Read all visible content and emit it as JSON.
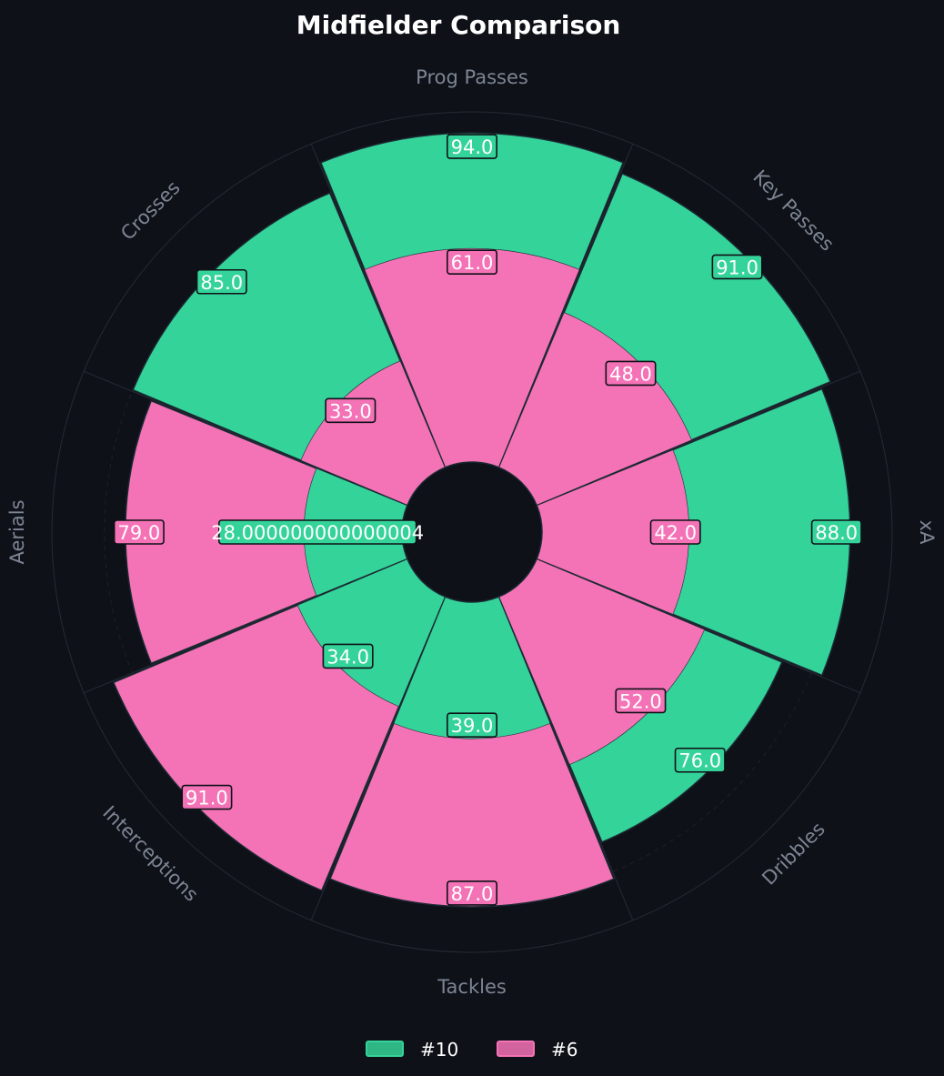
{
  "chart_data": {
    "type": "polar-bar",
    "title": "Midfielder Comparison",
    "categories": [
      "Prog Passes",
      "Key Passes",
      "xA",
      "Dribbles",
      "Tackles",
      "Interceptions",
      "Aerials",
      "Crosses"
    ],
    "series": [
      {
        "name": "#10",
        "color": "#34d399",
        "values": [
          94,
          91,
          88,
          76,
          39,
          34,
          28,
          85
        ],
        "labels": [
          "94.0",
          "91.0",
          "88.0",
          "76.0",
          "39.0",
          "34.0",
          "28.000000000000004",
          "85.0"
        ]
      },
      {
        "name": "#6",
        "color": "#f472b6",
        "values": [
          61,
          48,
          42,
          52,
          87,
          91,
          79,
          33
        ],
        "labels": [
          "61.0",
          "48.0",
          "42.0",
          "52.0",
          "87.0",
          "91.0",
          "79.0",
          "33.0"
        ]
      }
    ],
    "rlim": [
      0,
      100
    ],
    "legend_position": "bottom-center",
    "background": "#0e1117",
    "grid": true
  }
}
